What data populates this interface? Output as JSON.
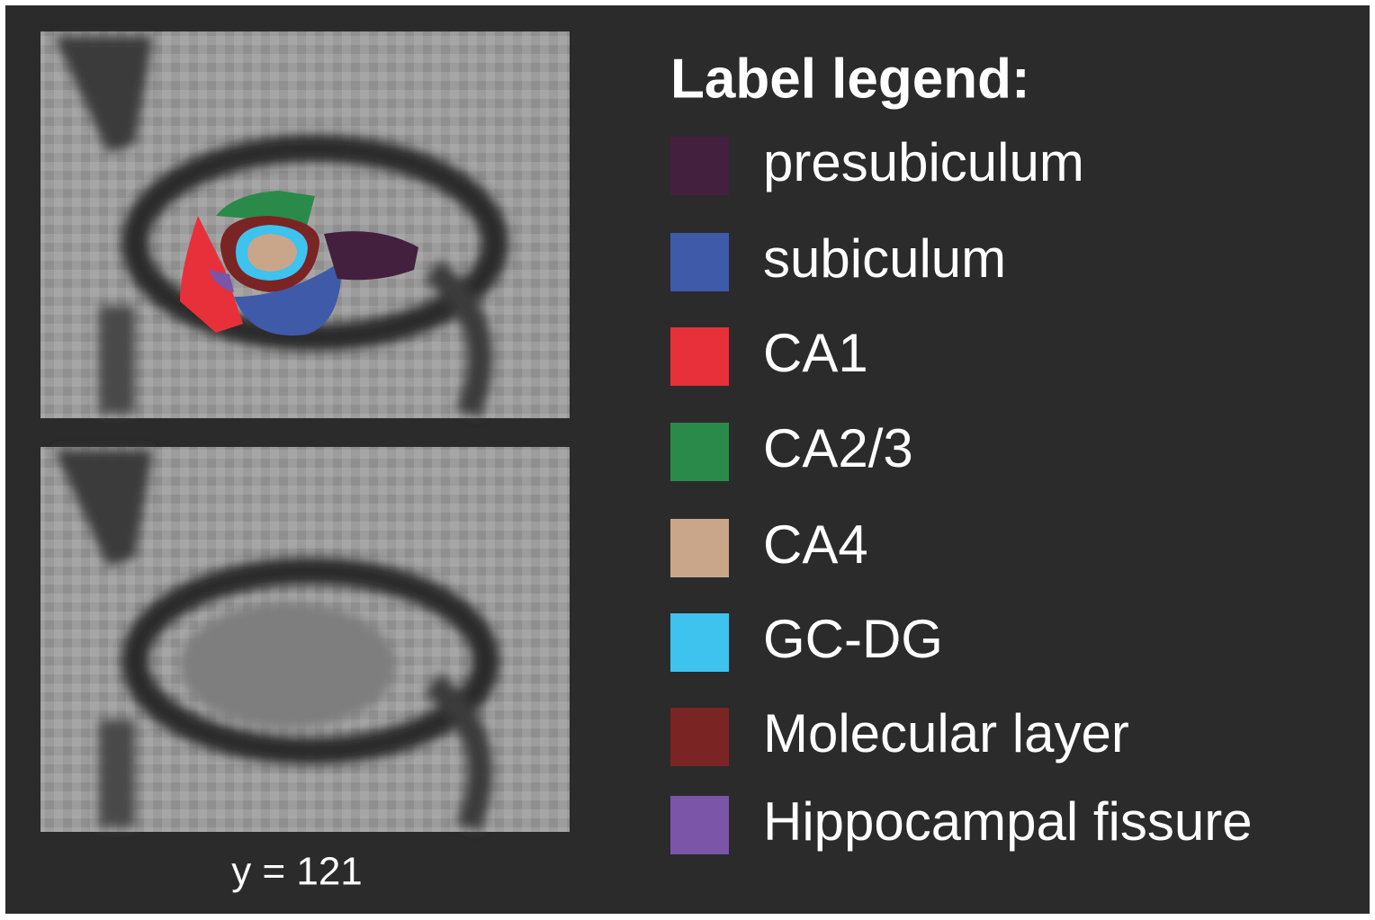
{
  "legend": {
    "title": "Label legend:",
    "items": [
      {
        "label": "presubiculum",
        "color": "#44203f"
      },
      {
        "label": "subiculum",
        "color": "#3f5aa8"
      },
      {
        "label": "CA1",
        "color": "#e8303a"
      },
      {
        "label": "CA2/3",
        "color": "#2a8a4a"
      },
      {
        "label": "CA4",
        "color": "#c9a68a"
      },
      {
        "label": "GC-DG",
        "color": "#3ec2ee"
      },
      {
        "label": "Molecular layer",
        "color": "#7b2424"
      },
      {
        "label": "Hippocampal fissure",
        "color": "#7a55a8"
      }
    ]
  },
  "caption": "y = 121"
}
